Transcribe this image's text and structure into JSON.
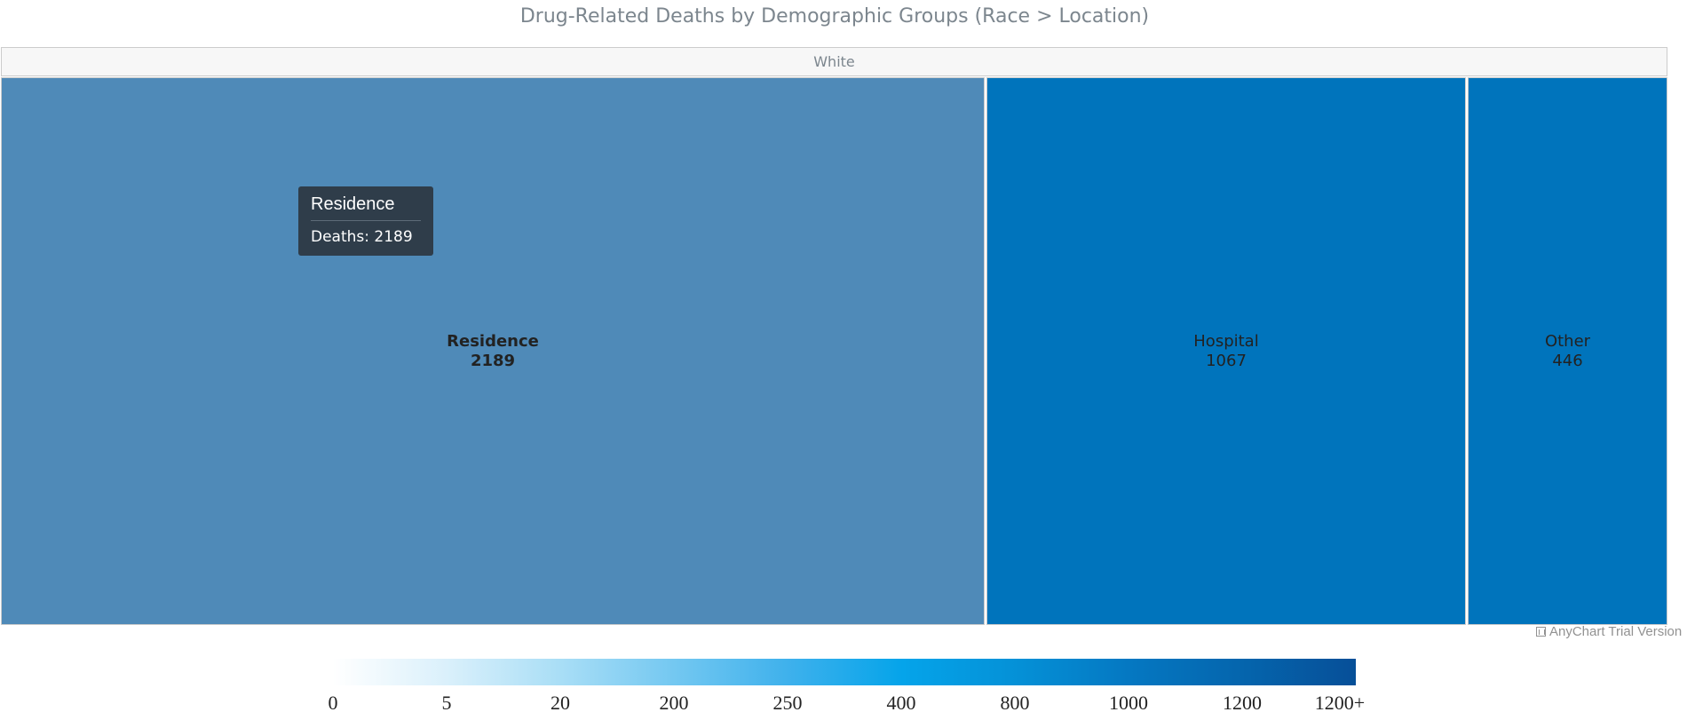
{
  "chart_data": {
    "type": "treemap",
    "title": "Drug-Related Deaths by Demographic Groups (Race > Location)",
    "group": "White",
    "items": [
      {
        "name": "Residence",
        "value": 2189,
        "color": "#4f8ab8"
      },
      {
        "name": "Hospital",
        "value": 1067,
        "color": "#0074bc"
      },
      {
        "name": "Other",
        "value": 446,
        "color": "#0074bc"
      }
    ],
    "hovered_item": "Residence",
    "tooltip": {
      "title": "Residence",
      "body": "Deaths: 2189"
    },
    "color_scale": {
      "ticks": [
        "0",
        "5",
        "20",
        "200",
        "250",
        "400",
        "800",
        "1000",
        "1200",
        "1200+"
      ],
      "colors": [
        "#ffffff",
        "#daf0fb",
        "#a9def6",
        "#74c8f1",
        "#3fb1ec",
        "#05a4ea",
        "#0591d7",
        "#0578c2",
        "#0565ad",
        "#064f98"
      ]
    }
  },
  "credits": "AnyChart Trial Version"
}
